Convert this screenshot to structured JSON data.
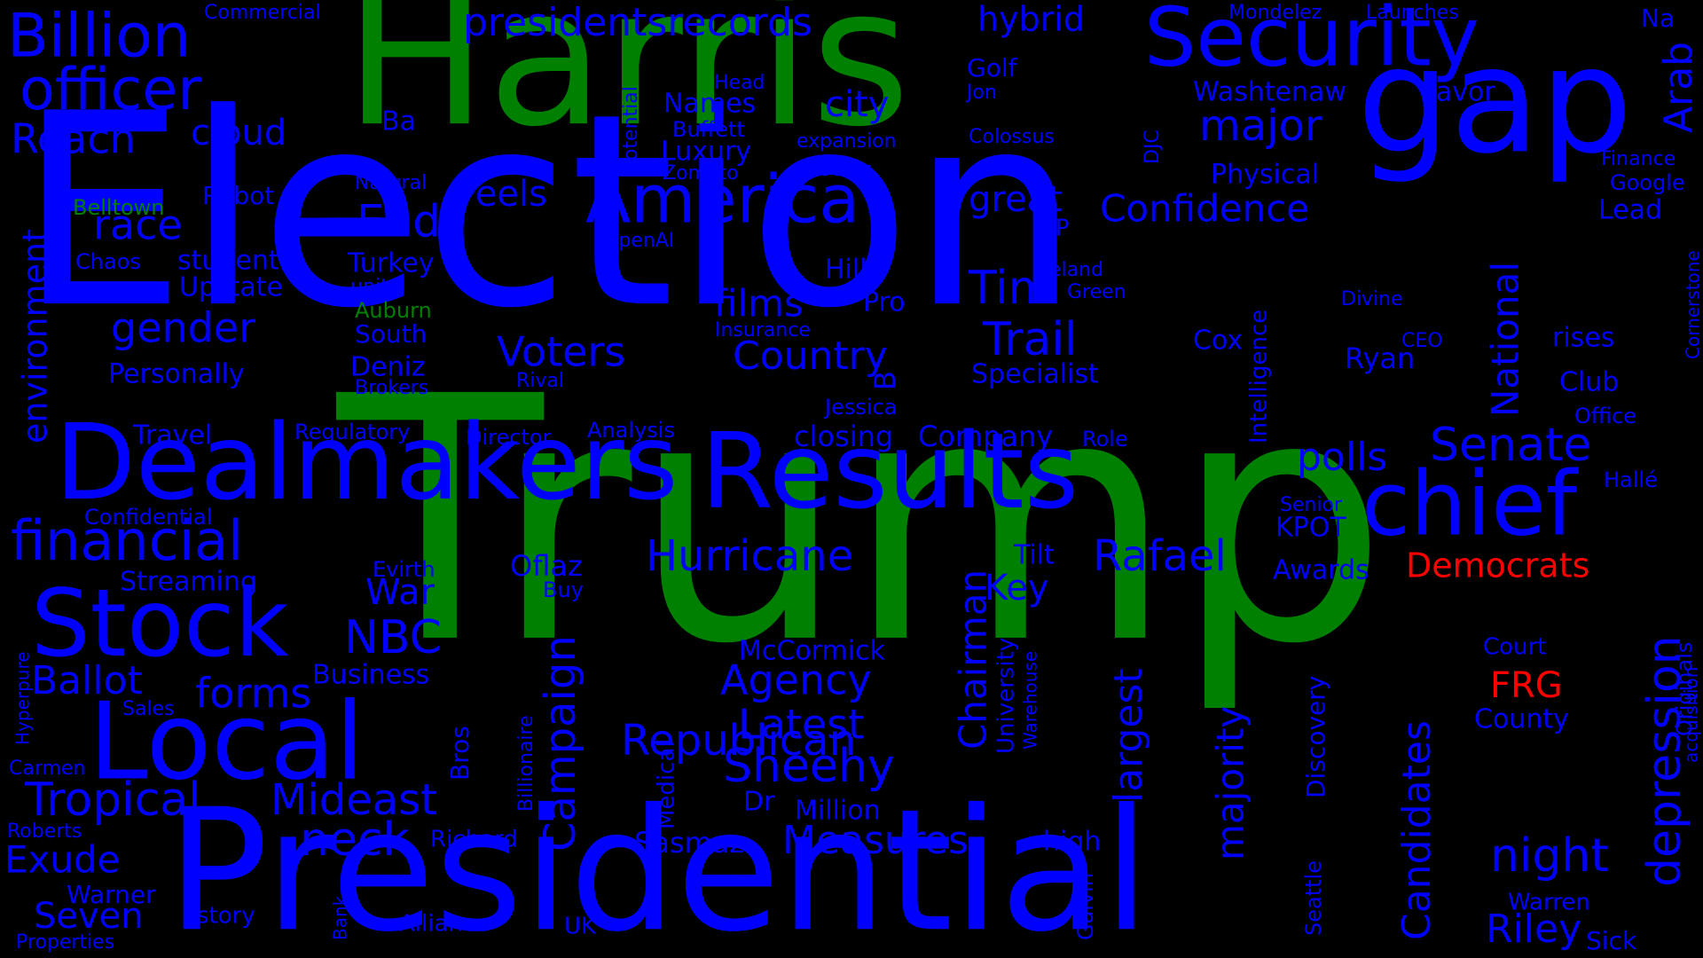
{
  "palette": {
    "background": "#000000",
    "blue": "#0000ff",
    "green": "#008000",
    "red": "#ff0000"
  },
  "words": [
    {
      "text": "Election",
      "color": "blue"
    },
    {
      "text": "Trump",
      "color": "green"
    },
    {
      "text": "Harris",
      "color": "green"
    },
    {
      "text": "Presidential",
      "color": "blue"
    },
    {
      "text": "Results",
      "color": "blue"
    },
    {
      "text": "Dealmakers",
      "color": "blue"
    },
    {
      "text": "Security",
      "color": "blue"
    },
    {
      "text": "gap",
      "color": "blue"
    },
    {
      "text": "chief",
      "color": "blue"
    },
    {
      "text": "Local",
      "color": "blue"
    },
    {
      "text": "Stock",
      "color": "blue"
    },
    {
      "text": "America",
      "color": "blue"
    },
    {
      "text": "Billion",
      "color": "blue"
    },
    {
      "text": "officer",
      "color": "blue"
    },
    {
      "text": "financial",
      "color": "blue"
    },
    {
      "text": "Republican",
      "color": "blue"
    },
    {
      "text": "Hurricane",
      "color": "blue"
    },
    {
      "text": "Rafael",
      "color": "blue"
    },
    {
      "text": "Senate",
      "color": "blue"
    },
    {
      "text": "depression",
      "color": "blue"
    },
    {
      "text": "Tropical",
      "color": "blue"
    },
    {
      "text": "Mideast",
      "color": "blue"
    },
    {
      "text": "Sheehy",
      "color": "blue"
    },
    {
      "text": "Campaign",
      "color": "blue"
    },
    {
      "text": "presidentsrecords",
      "color": "blue"
    },
    {
      "text": "Confidence",
      "color": "blue"
    },
    {
      "text": "Reach",
      "color": "blue"
    },
    {
      "text": "major",
      "color": "blue"
    },
    {
      "text": "gender",
      "color": "blue"
    },
    {
      "text": "race",
      "color": "blue"
    },
    {
      "text": "environment",
      "color": "blue"
    },
    {
      "text": "neck",
      "color": "blue"
    },
    {
      "text": "Measures",
      "color": "blue"
    },
    {
      "text": "night",
      "color": "blue"
    },
    {
      "text": "Candidates",
      "color": "blue"
    },
    {
      "text": "majority",
      "color": "blue"
    },
    {
      "text": "largest",
      "color": "blue"
    },
    {
      "text": "Chairman",
      "color": "blue"
    },
    {
      "text": "Agency",
      "color": "blue"
    },
    {
      "text": "Latest",
      "color": "blue"
    },
    {
      "text": "Trail",
      "color": "blue"
    },
    {
      "text": "Tim",
      "color": "blue"
    },
    {
      "text": "polls",
      "color": "blue"
    },
    {
      "text": "Voters",
      "color": "blue"
    },
    {
      "text": "Country",
      "color": "blue"
    },
    {
      "text": "films",
      "color": "blue"
    },
    {
      "text": "forms",
      "color": "blue"
    },
    {
      "text": "Ballot",
      "color": "blue"
    },
    {
      "text": "NBC",
      "color": "blue"
    },
    {
      "text": "War",
      "color": "blue"
    },
    {
      "text": "Exude",
      "color": "blue"
    },
    {
      "text": "Seven",
      "color": "blue"
    },
    {
      "text": "Riley",
      "color": "blue"
    },
    {
      "text": "National",
      "color": "blue"
    },
    {
      "text": "Arab",
      "color": "blue"
    },
    {
      "text": "End",
      "color": "blue"
    },
    {
      "text": "cloud",
      "color": "blue"
    },
    {
      "text": "great",
      "color": "blue"
    },
    {
      "text": "hybrid",
      "color": "blue"
    },
    {
      "text": "city",
      "color": "blue"
    },
    {
      "text": "Feels",
      "color": "blue"
    },
    {
      "text": "Key",
      "color": "blue"
    },
    {
      "text": "Oflaz",
      "color": "blue"
    },
    {
      "text": "Democrats",
      "color": "red"
    },
    {
      "text": "FRG",
      "color": "red"
    },
    {
      "text": "Specialist",
      "color": "blue"
    },
    {
      "text": "Personally",
      "color": "blue"
    },
    {
      "text": "Washtenaw",
      "color": "blue"
    },
    {
      "text": "Physical",
      "color": "blue"
    },
    {
      "text": "flavor",
      "color": "blue"
    },
    {
      "text": "closing",
      "color": "blue"
    },
    {
      "text": "Company",
      "color": "blue"
    },
    {
      "text": "Streaming",
      "color": "blue"
    },
    {
      "text": "Travel",
      "color": "blue"
    },
    {
      "text": "McCormick",
      "color": "blue"
    },
    {
      "text": "Business",
      "color": "blue"
    },
    {
      "text": "Sasmaz",
      "color": "blue"
    },
    {
      "text": "Million",
      "color": "blue"
    },
    {
      "text": "high",
      "color": "blue"
    },
    {
      "text": "Intelligence",
      "color": "blue"
    },
    {
      "text": "Discovery",
      "color": "blue"
    },
    {
      "text": "Cox",
      "color": "blue"
    },
    {
      "text": "Ryan",
      "color": "blue"
    },
    {
      "text": "rises",
      "color": "blue"
    },
    {
      "text": "Club",
      "color": "blue"
    },
    {
      "text": "County",
      "color": "blue"
    },
    {
      "text": "Court",
      "color": "blue"
    },
    {
      "text": "Awards",
      "color": "blue"
    },
    {
      "text": "KPOT",
      "color": "blue"
    },
    {
      "text": "Deniz",
      "color": "blue"
    },
    {
      "text": "South",
      "color": "blue"
    },
    {
      "text": "Turkey",
      "color": "blue"
    },
    {
      "text": "Hills",
      "color": "blue"
    },
    {
      "text": "Pro",
      "color": "blue"
    },
    {
      "text": "VP",
      "color": "blue"
    },
    {
      "text": "Upstate",
      "color": "blue"
    },
    {
      "text": "student",
      "color": "blue"
    },
    {
      "text": "Robot",
      "color": "blue"
    },
    {
      "text": "Names",
      "color": "blue"
    },
    {
      "text": "Luxury",
      "color": "blue"
    },
    {
      "text": "Golf",
      "color": "blue"
    },
    {
      "text": "Ba",
      "color": "blue"
    },
    {
      "text": "Lead",
      "color": "blue"
    },
    {
      "text": "Warren",
      "color": "blue"
    },
    {
      "text": "Sick",
      "color": "blue"
    },
    {
      "text": "Originals",
      "color": "blue"
    },
    {
      "text": "acquisition",
      "color": "blue"
    },
    {
      "text": "Cornerstone",
      "color": "blue"
    },
    {
      "text": "Finance",
      "color": "blue"
    },
    {
      "text": "Google",
      "color": "blue"
    },
    {
      "text": "Office",
      "color": "blue"
    },
    {
      "text": "Hallé",
      "color": "blue"
    },
    {
      "text": "Senior",
      "color": "blue"
    },
    {
      "text": "Tilt",
      "color": "blue"
    },
    {
      "text": "Role",
      "color": "blue"
    },
    {
      "text": "Jessica",
      "color": "blue"
    },
    {
      "text": "Analysis",
      "color": "blue"
    },
    {
      "text": "Director",
      "color": "blue"
    },
    {
      "text": "Regulatory",
      "color": "blue"
    },
    {
      "text": "Confidential",
      "color": "blue"
    },
    {
      "text": "Evirth",
      "color": "blue"
    },
    {
      "text": "Buy",
      "color": "blue"
    },
    {
      "text": "Bros",
      "color": "blue"
    },
    {
      "text": "Billionaire",
      "color": "blue"
    },
    {
      "text": "Medical",
      "color": "blue"
    },
    {
      "text": "Dr",
      "color": "blue"
    },
    {
      "text": "University",
      "color": "blue"
    },
    {
      "text": "Warehouse",
      "color": "blue"
    },
    {
      "text": "Galvin",
      "color": "blue"
    },
    {
      "text": "Seattle",
      "color": "blue"
    },
    {
      "text": "Richard",
      "color": "blue"
    },
    {
      "text": "Alliance",
      "color": "blue"
    },
    {
      "text": "UK",
      "color": "blue"
    },
    {
      "text": "Bank",
      "color": "blue"
    },
    {
      "text": "story",
      "color": "blue"
    },
    {
      "text": "Warner",
      "color": "blue"
    },
    {
      "text": "Roberts",
      "color": "blue"
    },
    {
      "text": "Carmen",
      "color": "blue"
    },
    {
      "text": "Properties",
      "color": "blue"
    },
    {
      "text": "Sales",
      "color": "blue"
    },
    {
      "text": "Hyperpure",
      "color": "blue"
    },
    {
      "text": "Chaos",
      "color": "blue"
    },
    {
      "text": "Belltown",
      "color": "green"
    },
    {
      "text": "Auburn",
      "color": "green"
    },
    {
      "text": "units",
      "color": "blue"
    },
    {
      "text": "Brokers",
      "color": "blue"
    },
    {
      "text": "Rival",
      "color": "blue"
    },
    {
      "text": "Insurance",
      "color": "blue"
    },
    {
      "text": "OpenAI",
      "color": "blue"
    },
    {
      "text": "Natural",
      "color": "blue"
    },
    {
      "text": "Zomato",
      "color": "blue"
    },
    {
      "text": "potential",
      "color": "blue"
    },
    {
      "text": "Buffett",
      "color": "blue"
    },
    {
      "text": "Head",
      "color": "blue"
    },
    {
      "text": "expansion",
      "color": "blue"
    },
    {
      "text": "Grocers",
      "color": "blue"
    },
    {
      "text": "Colossus",
      "color": "blue"
    },
    {
      "text": "Jon",
      "color": "blue"
    },
    {
      "text": "DJC",
      "color": "blue"
    },
    {
      "text": "Ireland",
      "color": "blue"
    },
    {
      "text": "Green",
      "color": "blue"
    },
    {
      "text": "Divine",
      "color": "blue"
    },
    {
      "text": "CEO",
      "color": "blue"
    },
    {
      "text": "U",
      "color": "blue"
    },
    {
      "text": "B",
      "color": "blue"
    },
    {
      "text": "Commercial",
      "color": "blue"
    },
    {
      "text": "Mondelez",
      "color": "blue"
    },
    {
      "text": "Launches",
      "color": "blue"
    },
    {
      "text": "Na",
      "color": "blue"
    }
  ]
}
